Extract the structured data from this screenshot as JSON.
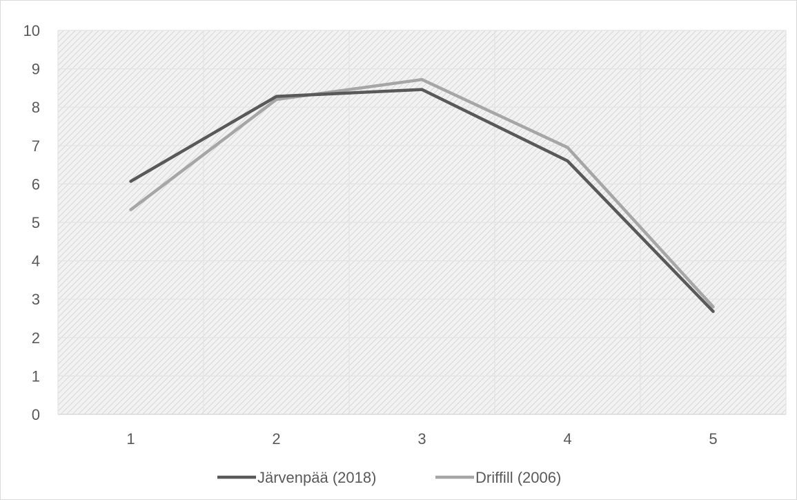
{
  "chart_data": {
    "type": "line",
    "title": "",
    "xlabel": "",
    "ylabel": "",
    "categories": [
      "1",
      "2",
      "3",
      "4",
      "5"
    ],
    "ylim": [
      0,
      10
    ],
    "y_ticks": [
      "0",
      "1",
      "2",
      "3",
      "4",
      "5",
      "6",
      "7",
      "8",
      "9",
      "10"
    ],
    "grid": true,
    "plot_background": "diagonal hatch",
    "legend_position": "bottom",
    "series": [
      {
        "name": "Järvenpää (2018)",
        "values": [
          6.07,
          8.28,
          8.46,
          6.6,
          2.68
        ],
        "color": "#595959"
      },
      {
        "name": "Driffill (2006)",
        "values": [
          5.33,
          8.2,
          8.72,
          6.95,
          2.8
        ],
        "color": "#a6a6a6"
      }
    ]
  }
}
